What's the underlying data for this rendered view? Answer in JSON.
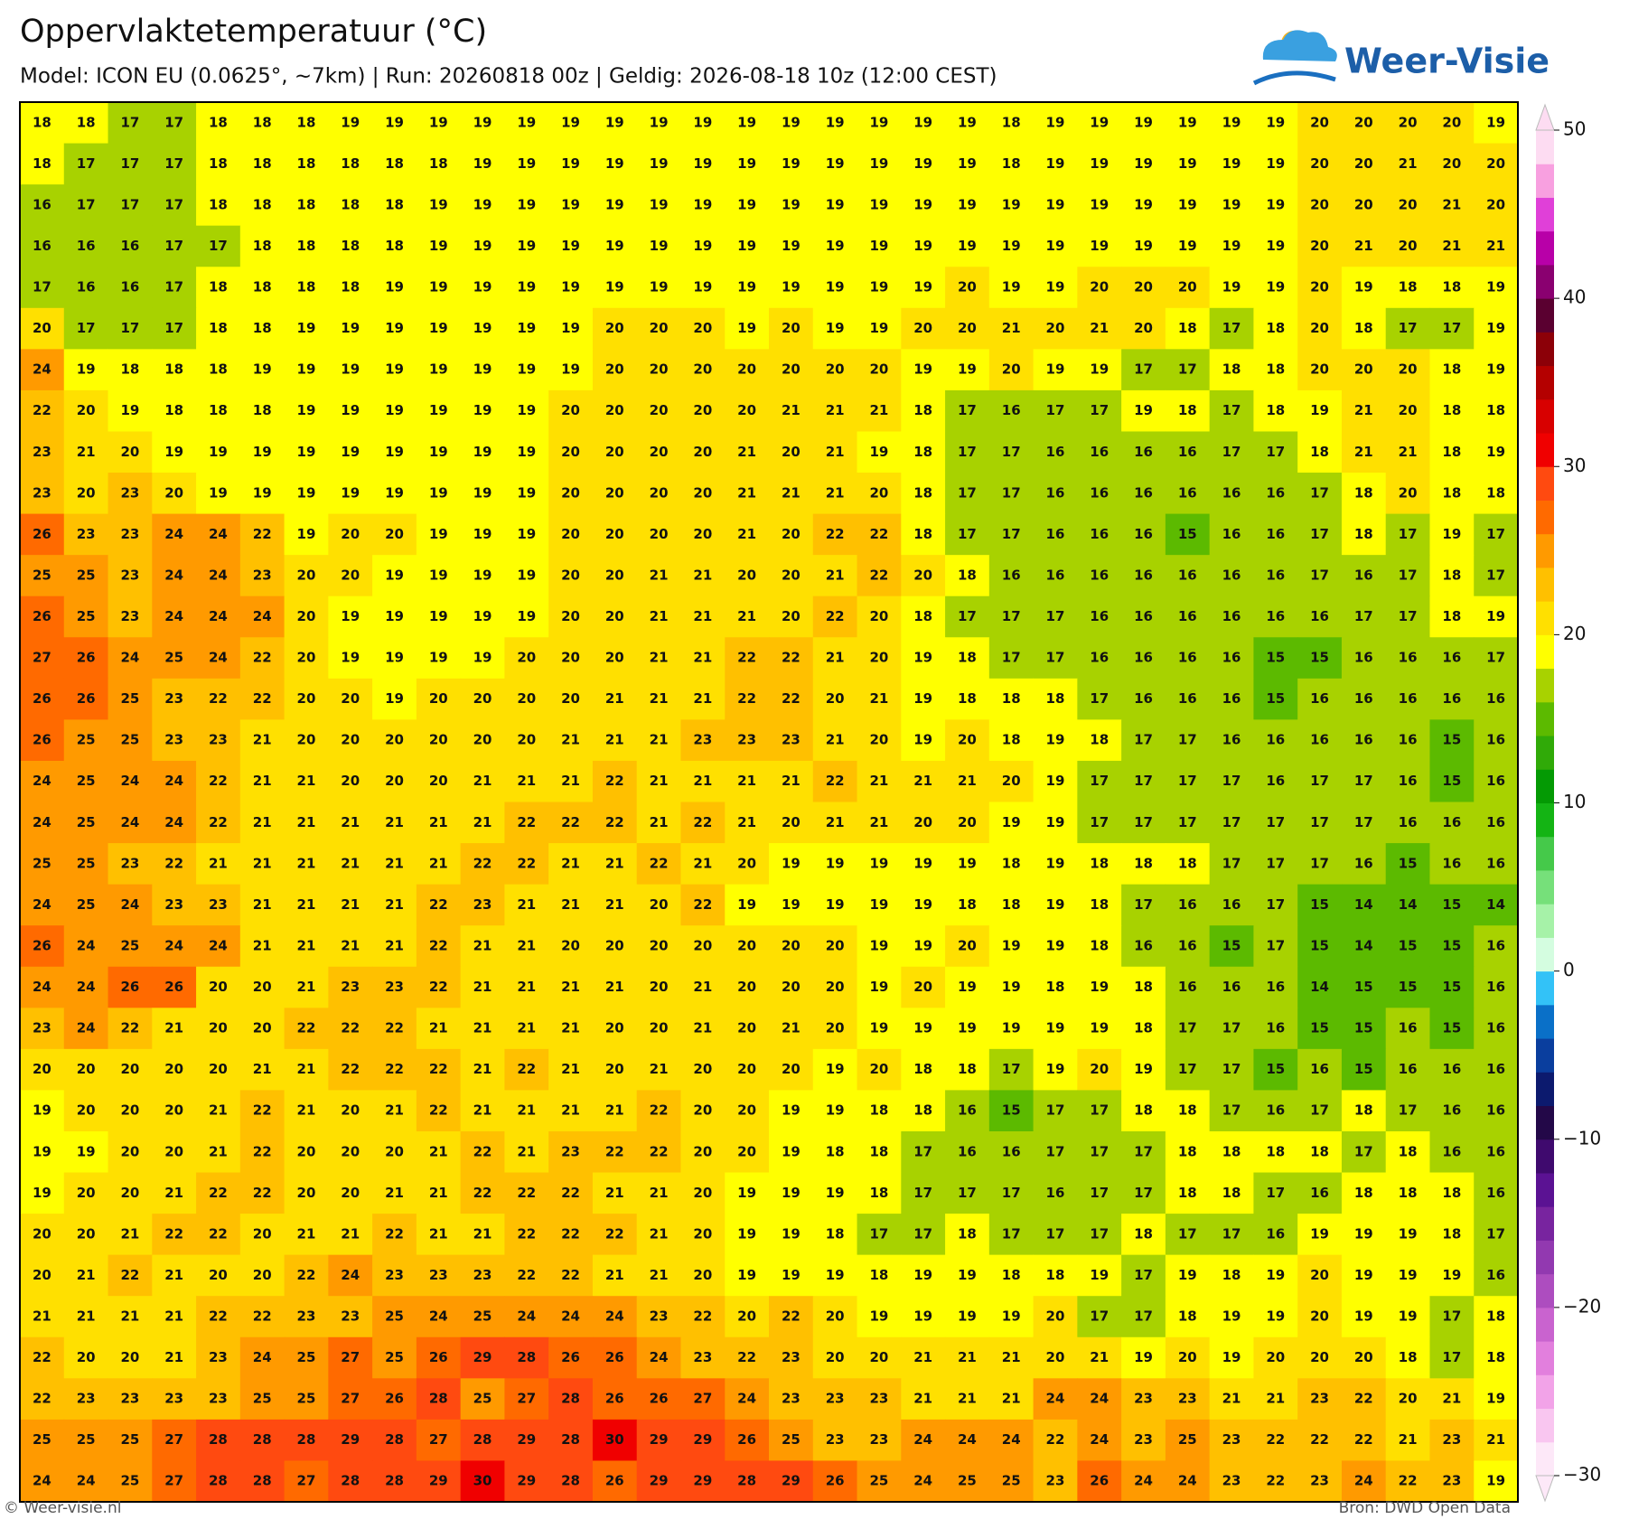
{
  "chart_data": {
    "type": "heatmap",
    "title": "Oppervlaktetemperatuur (°C)",
    "subtitle": "Model: ICON EU (0.0625°, ~7km)  |  Run: 20260818 00z  |  Geldig: 2026-08-18 10z (12:00 CEST)",
    "logo_text": "Weer-Visie",
    "footer_left": "© Weer-visie.nl",
    "footer_right": "Bron: DWD Open Data",
    "values": [
      [
        18,
        18,
        17,
        17,
        18,
        18,
        18,
        19,
        19,
        19,
        19,
        19,
        19,
        19,
        19,
        19,
        19,
        19,
        19,
        19,
        19,
        19,
        18,
        19,
        19,
        19,
        19,
        19,
        19,
        20,
        20,
        20,
        20,
        19
      ],
      [
        18,
        17,
        17,
        17,
        18,
        18,
        18,
        18,
        18,
        18,
        19,
        19,
        19,
        19,
        19,
        19,
        19,
        19,
        19,
        19,
        19,
        19,
        18,
        19,
        19,
        19,
        19,
        19,
        19,
        20,
        20,
        21,
        20,
        20
      ],
      [
        16,
        17,
        17,
        17,
        18,
        18,
        18,
        18,
        18,
        19,
        19,
        19,
        19,
        19,
        19,
        19,
        19,
        19,
        19,
        19,
        19,
        19,
        19,
        19,
        19,
        19,
        19,
        19,
        19,
        20,
        20,
        20,
        21,
        20
      ],
      [
        16,
        16,
        16,
        17,
        17,
        18,
        18,
        18,
        18,
        19,
        19,
        19,
        19,
        19,
        19,
        19,
        19,
        19,
        19,
        19,
        19,
        19,
        19,
        19,
        19,
        19,
        19,
        19,
        19,
        20,
        21,
        20,
        21,
        21
      ],
      [
        17,
        16,
        16,
        17,
        18,
        18,
        18,
        18,
        19,
        19,
        19,
        19,
        19,
        19,
        19,
        19,
        19,
        19,
        19,
        19,
        19,
        20,
        19,
        19,
        20,
        20,
        20,
        19,
        19,
        20,
        19,
        18,
        18,
        19
      ],
      [
        20,
        17,
        17,
        17,
        18,
        18,
        19,
        19,
        19,
        19,
        19,
        19,
        19,
        20,
        20,
        20,
        19,
        20,
        19,
        19,
        20,
        20,
        21,
        20,
        21,
        20,
        18,
        17,
        18,
        20,
        18,
        17,
        17,
        19
      ],
      [
        24,
        19,
        18,
        18,
        18,
        19,
        19,
        19,
        19,
        19,
        19,
        19,
        19,
        20,
        20,
        20,
        20,
        20,
        20,
        20,
        19,
        19,
        20,
        19,
        19,
        17,
        17,
        18,
        18,
        20,
        20,
        20,
        18,
        19
      ],
      [
        22,
        20,
        19,
        18,
        18,
        18,
        19,
        19,
        19,
        19,
        19,
        19,
        20,
        20,
        20,
        20,
        20,
        21,
        21,
        21,
        18,
        17,
        16,
        17,
        17,
        19,
        18,
        17,
        18,
        19,
        21,
        20,
        18,
        18
      ],
      [
        23,
        21,
        20,
        19,
        19,
        19,
        19,
        19,
        19,
        19,
        19,
        19,
        20,
        20,
        20,
        20,
        21,
        20,
        21,
        19,
        18,
        17,
        17,
        16,
        16,
        16,
        16,
        17,
        17,
        18,
        21,
        21,
        18,
        19
      ],
      [
        23,
        20,
        23,
        20,
        19,
        19,
        19,
        19,
        19,
        19,
        19,
        19,
        20,
        20,
        20,
        20,
        21,
        21,
        21,
        20,
        18,
        17,
        17,
        16,
        16,
        16,
        16,
        16,
        16,
        17,
        18,
        20,
        18,
        18
      ],
      [
        26,
        23,
        23,
        24,
        24,
        22,
        19,
        20,
        20,
        19,
        19,
        19,
        20,
        20,
        20,
        20,
        21,
        20,
        22,
        22,
        18,
        17,
        17,
        16,
        16,
        16,
        15,
        16,
        16,
        17,
        18,
        17,
        19,
        17
      ],
      [
        25,
        25,
        23,
        24,
        24,
        23,
        20,
        20,
        19,
        19,
        19,
        19,
        20,
        20,
        21,
        21,
        20,
        20,
        21,
        22,
        20,
        18,
        16,
        16,
        16,
        16,
        16,
        16,
        16,
        17,
        16,
        17,
        18,
        17
      ],
      [
        26,
        25,
        23,
        24,
        24,
        24,
        20,
        19,
        19,
        19,
        19,
        19,
        20,
        20,
        21,
        21,
        21,
        20,
        22,
        20,
        18,
        17,
        17,
        17,
        16,
        16,
        16,
        16,
        16,
        16,
        17,
        17,
        18,
        19
      ],
      [
        27,
        26,
        24,
        25,
        24,
        22,
        20,
        19,
        19,
        19,
        19,
        20,
        20,
        20,
        21,
        21,
        22,
        22,
        21,
        20,
        19,
        18,
        17,
        17,
        16,
        16,
        16,
        16,
        15,
        15,
        16,
        16,
        16,
        17
      ],
      [
        26,
        26,
        25,
        23,
        22,
        22,
        20,
        20,
        19,
        20,
        20,
        20,
        20,
        21,
        21,
        21,
        22,
        22,
        20,
        21,
        19,
        18,
        18,
        18,
        17,
        16,
        16,
        16,
        15,
        16,
        16,
        16,
        16,
        16
      ],
      [
        26,
        25,
        25,
        23,
        23,
        21,
        20,
        20,
        20,
        20,
        20,
        20,
        21,
        21,
        21,
        23,
        23,
        23,
        21,
        20,
        19,
        20,
        18,
        19,
        18,
        17,
        17,
        16,
        16,
        16,
        16,
        16,
        15,
        16
      ],
      [
        24,
        25,
        24,
        24,
        22,
        21,
        21,
        20,
        20,
        20,
        21,
        21,
        21,
        22,
        21,
        21,
        21,
        21,
        22,
        21,
        21,
        21,
        20,
        19,
        17,
        17,
        17,
        17,
        16,
        17,
        17,
        16,
        15,
        16
      ],
      [
        24,
        25,
        24,
        24,
        22,
        21,
        21,
        21,
        21,
        21,
        21,
        22,
        22,
        22,
        21,
        22,
        21,
        20,
        21,
        21,
        20,
        20,
        19,
        19,
        17,
        17,
        17,
        17,
        17,
        17,
        17,
        16,
        16,
        16
      ],
      [
        25,
        25,
        23,
        22,
        21,
        21,
        21,
        21,
        21,
        21,
        22,
        22,
        21,
        21,
        22,
        21,
        20,
        19,
        19,
        19,
        19,
        19,
        18,
        19,
        18,
        18,
        18,
        17,
        17,
        17,
        16,
        15,
        16,
        16
      ],
      [
        24,
        25,
        24,
        23,
        23,
        21,
        21,
        21,
        21,
        22,
        23,
        21,
        21,
        21,
        20,
        22,
        19,
        19,
        19,
        19,
        19,
        18,
        18,
        19,
        18,
        17,
        16,
        16,
        17,
        15,
        14,
        14,
        15,
        14
      ],
      [
        26,
        24,
        25,
        24,
        24,
        21,
        21,
        21,
        21,
        22,
        21,
        21,
        20,
        20,
        20,
        20,
        20,
        20,
        20,
        19,
        19,
        20,
        19,
        19,
        18,
        16,
        16,
        15,
        17,
        15,
        14,
        15,
        15,
        16
      ],
      [
        24,
        24,
        26,
        26,
        20,
        20,
        21,
        23,
        23,
        22,
        21,
        21,
        21,
        21,
        20,
        21,
        20,
        20,
        20,
        19,
        20,
        19,
        19,
        18,
        19,
        18,
        16,
        16,
        16,
        14,
        15,
        15,
        15,
        16
      ],
      [
        23,
        24,
        22,
        21,
        20,
        20,
        22,
        22,
        22,
        21,
        21,
        21,
        21,
        20,
        20,
        21,
        20,
        21,
        20,
        19,
        19,
        19,
        19,
        19,
        19,
        18,
        17,
        17,
        16,
        15,
        15,
        16,
        15,
        16
      ],
      [
        20,
        20,
        20,
        20,
        20,
        21,
        21,
        22,
        22,
        22,
        21,
        22,
        21,
        20,
        21,
        20,
        20,
        20,
        19,
        20,
        18,
        18,
        17,
        19,
        20,
        19,
        17,
        17,
        15,
        16,
        15,
        16,
        16,
        16
      ],
      [
        19,
        20,
        20,
        20,
        21,
        22,
        21,
        20,
        21,
        22,
        21,
        21,
        21,
        21,
        22,
        20,
        20,
        19,
        19,
        18,
        18,
        16,
        15,
        17,
        17,
        18,
        18,
        17,
        16,
        17,
        18,
        17,
        16,
        16
      ],
      [
        19,
        19,
        20,
        20,
        21,
        22,
        20,
        20,
        20,
        21,
        22,
        21,
        23,
        22,
        22,
        20,
        20,
        19,
        18,
        18,
        17,
        16,
        16,
        17,
        17,
        17,
        18,
        18,
        18,
        18,
        17,
        18,
        16,
        16
      ],
      [
        19,
        20,
        20,
        21,
        22,
        22,
        20,
        20,
        21,
        21,
        22,
        22,
        22,
        21,
        21,
        20,
        19,
        19,
        19,
        18,
        17,
        17,
        17,
        16,
        17,
        17,
        18,
        18,
        17,
        16,
        18,
        18,
        18,
        16
      ],
      [
        20,
        20,
        21,
        22,
        22,
        20,
        21,
        21,
        22,
        21,
        21,
        22,
        22,
        22,
        21,
        20,
        19,
        19,
        18,
        17,
        17,
        18,
        17,
        17,
        17,
        18,
        17,
        17,
        16,
        19,
        19,
        19,
        18,
        17
      ],
      [
        20,
        21,
        22,
        21,
        20,
        20,
        22,
        24,
        23,
        23,
        23,
        22,
        22,
        21,
        21,
        20,
        19,
        19,
        19,
        18,
        19,
        19,
        18,
        18,
        19,
        17,
        19,
        18,
        19,
        20,
        19,
        19,
        19,
        16
      ],
      [
        21,
        21,
        21,
        21,
        22,
        22,
        23,
        23,
        25,
        24,
        25,
        24,
        24,
        24,
        23,
        22,
        20,
        22,
        20,
        19,
        19,
        19,
        19,
        20,
        17,
        17,
        18,
        19,
        19,
        20,
        19,
        19,
        17,
        18
      ],
      [
        22,
        20,
        20,
        21,
        23,
        24,
        25,
        27,
        25,
        26,
        29,
        28,
        26,
        26,
        24,
        23,
        22,
        23,
        20,
        20,
        21,
        21,
        21,
        20,
        21,
        19,
        20,
        19,
        20,
        20,
        20,
        18,
        17,
        18
      ],
      [
        22,
        23,
        23,
        23,
        23,
        25,
        25,
        27,
        26,
        28,
        25,
        27,
        28,
        26,
        26,
        27,
        24,
        23,
        23,
        23,
        21,
        21,
        21,
        24,
        24,
        23,
        23,
        21,
        21,
        23,
        22,
        20,
        21,
        19
      ],
      [
        25,
        25,
        25,
        27,
        28,
        28,
        28,
        29,
        28,
        27,
        28,
        29,
        28,
        30,
        29,
        29,
        26,
        25,
        23,
        23,
        24,
        24,
        24,
        22,
        24,
        23,
        25,
        23,
        22,
        22,
        22,
        21,
        23,
        21
      ],
      [
        24,
        24,
        25,
        27,
        28,
        28,
        27,
        28,
        28,
        29,
        30,
        29,
        28,
        26,
        29,
        29,
        28,
        29,
        26,
        25,
        24,
        25,
        25,
        23,
        26,
        24,
        24,
        23,
        22,
        23,
        24,
        22,
        23,
        19
      ]
    ],
    "clim": [
      -30,
      50
    ],
    "cticks": [
      {
        "value": -30,
        "label": "−30"
      },
      {
        "value": -20,
        "label": "−20"
      },
      {
        "value": -10,
        "label": "−10"
      },
      0,
      10,
      20,
      30,
      40,
      50
    ],
    "colors": [
      "#fde8f8",
      "#f9c6f0",
      "#f2a3e8",
      "#e27fdd",
      "#c963cf",
      "#ad4dbf",
      "#9239b0",
      "#78249f",
      "#5b1293",
      "#3f0a6e",
      "#230848",
      "#0c1a6e",
      "#0a3e9e",
      "#0a70c8",
      "#33c2f7",
      "#d4fde0",
      "#a6f2a8",
      "#76e07a",
      "#45c94a",
      "#14b414",
      "#049a04",
      "#30aa08",
      "#5cba00",
      "#a8d200",
      "#ffff00",
      "#ffe000",
      "#ffc000",
      "#ff9a00",
      "#ff6a00",
      "#ff4a10",
      "#f00000",
      "#d80000",
      "#b40000",
      "#8c0008",
      "#5a0030",
      "#8a0070",
      "#b800a8",
      "#e040d8",
      "#f8a0e0",
      "#fddcf2"
    ]
  }
}
